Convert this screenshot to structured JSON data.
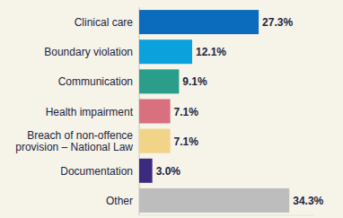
{
  "chart_data": {
    "type": "bar",
    "orientation": "horizontal",
    "categories": [
      "Clinical care",
      "Boundary violation",
      "Communication",
      "Health impairment",
      "Breach of non-offence provision – National Law",
      "Documentation",
      "Other"
    ],
    "values": [
      27.3,
      12.1,
      9.1,
      7.1,
      7.1,
      3.0,
      34.3
    ],
    "value_labels": [
      "27.3%",
      "12.1%",
      "9.1%",
      "7.1%",
      "7.1%",
      "3.0%",
      "34.3%"
    ],
    "colors": [
      "#0b6cbd",
      "#0aa1dd",
      "#2a9d8b",
      "#d8707e",
      "#f2d488",
      "#3b2a7e",
      "#bdbdbd"
    ],
    "xlim": [
      0,
      40
    ],
    "tick_labels": false,
    "data_labels": true,
    "grid": false
  }
}
